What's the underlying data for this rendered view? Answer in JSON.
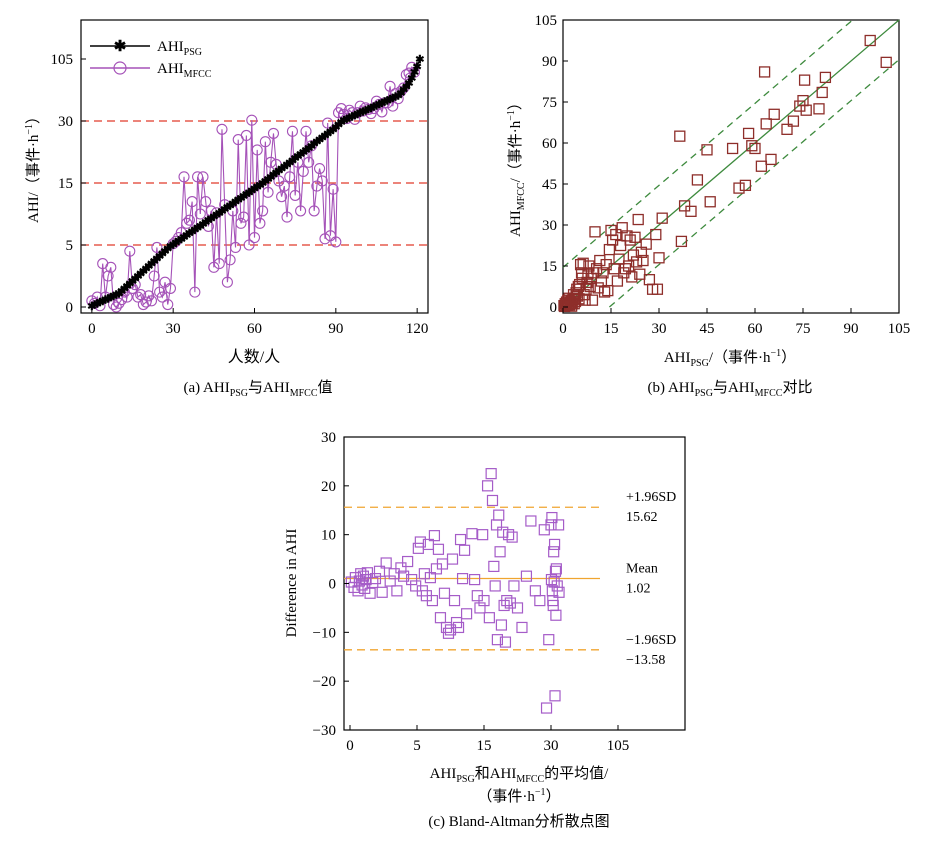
{
  "chart_data": [
    {
      "id": "a",
      "type": "line",
      "caption": "(a) AHI_PSG与AHI_MFCC值",
      "caption_parts": {
        "prefix": "(a) AHI",
        "sub1": "PSG",
        "mid": "与AHI",
        "sub2": "MFCC",
        "suffix": "值"
      },
      "xlabel": "人数/人",
      "ylabel_parts": {
        "main": "AHI/（事件·h",
        "sup": "−1",
        "end": "）"
      },
      "x_ticks": [
        "0",
        "30",
        "60",
        "90",
        "120"
      ],
      "y_ticks": [
        "0",
        "5",
        "15",
        "30",
        "105"
      ],
      "y_tick_positions": [
        0,
        5,
        15,
        30,
        105
      ],
      "xlim": [
        -4,
        124
      ],
      "legend_location": "top-left",
      "reference_lines": [
        5,
        15,
        30
      ],
      "colors": {
        "psg": "#000000",
        "mfcc": "#a552b8",
        "ref": "#e03a2a"
      },
      "series": [
        {
          "name": "AHI_PSG",
          "name_parts": {
            "main": "AHI",
            "sub": "PSG"
          },
          "marker": "star",
          "values": [
            0.1,
            0.2,
            0.3,
            0.4,
            0.5,
            0.6,
            0.7,
            0.8,
            0.9,
            1.0,
            1.1,
            1.3,
            1.5,
            1.7,
            1.9,
            2.1,
            2.3,
            2.5,
            2.7,
            2.9,
            3.1,
            3.3,
            3.5,
            3.7,
            3.9,
            4.1,
            4.3,
            4.5,
            4.7,
            4.9,
            5.1,
            5.4,
            5.7,
            6.0,
            6.3,
            6.6,
            6.9,
            7.2,
            7.5,
            7.8,
            8.1,
            8.4,
            8.7,
            9.0,
            9.3,
            9.6,
            9.9,
            10.2,
            10.5,
            10.8,
            11.1,
            11.4,
            11.7,
            12.0,
            12.3,
            12.6,
            12.9,
            13.2,
            13.5,
            13.8,
            14.1,
            14.4,
            14.7,
            15.0,
            15.5,
            16.0,
            16.5,
            17.0,
            17.5,
            18.0,
            18.5,
            19.0,
            19.5,
            20.0,
            20.5,
            21.0,
            21.5,
            22.0,
            22.5,
            23.0,
            23.5,
            24.0,
            24.5,
            25.0,
            25.5,
            26.0,
            26.5,
            27.0,
            27.5,
            28.0,
            28.6,
            29.2,
            29.8,
            31.0,
            32.5,
            34.0,
            35.5,
            37.0,
            38.5,
            40.0,
            41.5,
            43.0,
            44.5,
            46.0,
            47.5,
            49.0,
            50.5,
            52.0,
            53.5,
            55.0,
            56.5,
            58.0,
            59.5,
            61.0,
            64.0,
            68.0,
            72.0,
            76.0,
            82.0,
            89.0,
            96.0,
            105.0
          ]
        },
        {
          "name": "AHI_MFCC",
          "name_parts": {
            "main": "AHI",
            "sub": "MFCC"
          },
          "marker": "circle",
          "values": [
            0.5,
            0.3,
            0.8,
            0.1,
            3.5,
            0.8,
            2.5,
            3.2,
            0.2,
            0.0,
            0.3,
            0.6,
            1.2,
            0.8,
            4.5,
            1.5,
            1.8,
            0.8,
            1.0,
            0.2,
            0.4,
            0.9,
            0.5,
            2.5,
            4.8,
            1.2,
            0.8,
            2.0,
            0.2,
            1.5,
            5.2,
            5.6,
            6.2,
            7.0,
            16.5,
            8.5,
            9.0,
            12.0,
            1.2,
            16.5,
            10.0,
            16.5,
            12.0,
            8.0,
            10.5,
            3.2,
            10.2,
            3.5,
            28.0,
            11.5,
            2.0,
            3.8,
            10.5,
            4.8,
            25.5,
            8.5,
            9.5,
            26.5,
            5.0,
            31.0,
            6.2,
            23.0,
            8.5,
            10.5,
            25.0,
            13.5,
            20.0,
            27.0,
            19.5,
            15.5,
            12.8,
            14.5,
            9.5,
            16.5,
            27.5,
            13.0,
            20.0,
            10.5,
            17.8,
            27.5,
            20.0,
            24.0,
            10.5,
            14.5,
            18.5,
            15.5,
            6.0,
            29.5,
            6.5,
            14.0,
            5.5,
            40.0,
            45.0,
            38.0,
            33.0,
            43.0,
            40.0,
            32.0,
            40.0,
            48.0,
            42.0,
            46.0,
            44.0,
            39.0,
            45.0,
            54.0,
            50.0,
            41.0,
            52.0,
            52.0,
            72.0,
            48.0,
            63.0,
            57.0,
            66.0,
            70.0,
            86.0,
            88.0,
            95.0,
            89.0
          ]
        }
      ]
    },
    {
      "id": "b",
      "type": "scatter",
      "caption": "(b) AHI_PSG与AHI_MFCC对比",
      "caption_parts": {
        "prefix": "(b) AHI",
        "sub1": "PSG",
        "mid": "与AHI",
        "sub2": "MFCC",
        "suffix": "对比"
      },
      "xlabel_parts": {
        "main": "AHI",
        "sub": "PSG",
        "rest": "/（事件·h",
        "sup": "−1",
        "end": "）"
      },
      "ylabel_parts": {
        "main": "AHI",
        "sub": "MFCC",
        "rest": "/（事件·h",
        "sup": "−1",
        "end": "）"
      },
      "x_ticks": [
        "0",
        "15",
        "30",
        "45",
        "60",
        "75",
        "90",
        "105"
      ],
      "y_ticks": [
        "0",
        "15",
        "30",
        "45",
        "60",
        "75",
        "90",
        "105"
      ],
      "xlim": [
        0,
        105
      ],
      "ylim": [
        0,
        105
      ],
      "fit_line": {
        "slope": 1.0,
        "intercept": 0,
        "band": 14.5
      },
      "colors": {
        "marker": "#8e2e2a",
        "fit": "#3d8a3d"
      },
      "points": [
        [
          0.3,
          0.5
        ],
        [
          0.5,
          0.2
        ],
        [
          0.7,
          1.2
        ],
        [
          0.9,
          0.4
        ],
        [
          1.1,
          1.8
        ],
        [
          1.3,
          0.6
        ],
        [
          1.5,
          2.5
        ],
        [
          1.7,
          1.0
        ],
        [
          1.9,
          3.2
        ],
        [
          2.1,
          0.8
        ],
        [
          2.3,
          1.5
        ],
        [
          2.5,
          2.2
        ],
        [
          2.7,
          0.3
        ],
        [
          2.9,
          1.2
        ],
        [
          3.1,
          2.8
        ],
        [
          3.3,
          4.5
        ],
        [
          3.5,
          1.2
        ],
        [
          3.7,
          3.2
        ],
        [
          3.9,
          2.0
        ],
        [
          4.1,
          5.2
        ],
        [
          4.3,
          6.5
        ],
        [
          4.5,
          4.0
        ],
        [
          4.8,
          7.5
        ],
        [
          5.0,
          3.0
        ],
        [
          5.2,
          8.2
        ],
        [
          5.5,
          15.5
        ],
        [
          5.8,
          12.5
        ],
        [
          6.0,
          10.5
        ],
        [
          6.3,
          16.0
        ],
        [
          6.6,
          4.5
        ],
        [
          6.9,
          2.5
        ],
        [
          7.2,
          6.5
        ],
        [
          7.5,
          9.0
        ],
        [
          7.8,
          12.0
        ],
        [
          8.1,
          15.0
        ],
        [
          8.5,
          7.5
        ],
        [
          8.8,
          10.5
        ],
        [
          9.2,
          2.5
        ],
        [
          9.6,
          12.5
        ],
        [
          10.0,
          27.5
        ],
        [
          10.5,
          14.0
        ],
        [
          11.0,
          7.0
        ],
        [
          11.5,
          17.0
        ],
        [
          12.0,
          9.5
        ],
        [
          12.5,
          12.5
        ],
        [
          13.0,
          5.5
        ],
        [
          13.5,
          15.5
        ],
        [
          14.0,
          6.0
        ],
        [
          14.5,
          21.0
        ],
        [
          15.0,
          28.0
        ],
        [
          15.5,
          24.5
        ],
        [
          16.0,
          14.0
        ],
        [
          16.5,
          26.5
        ],
        [
          17.0,
          9.5
        ],
        [
          17.5,
          17.5
        ],
        [
          18.0,
          22.5
        ],
        [
          18.5,
          29.0
        ],
        [
          19.0,
          12.5
        ],
        [
          19.5,
          14.0
        ],
        [
          20.0,
          26.0
        ],
        [
          20.5,
          15.0
        ],
        [
          21.0,
          24.5
        ],
        [
          21.5,
          11.0
        ],
        [
          22.0,
          19.0
        ],
        [
          22.5,
          25.5
        ],
        [
          23.0,
          16.5
        ],
        [
          23.5,
          32.0
        ],
        [
          24.0,
          12.0
        ],
        [
          24.5,
          20.0
        ],
        [
          25.0,
          17.0
        ],
        [
          26.0,
          23.0
        ],
        [
          27.0,
          10.0
        ],
        [
          28.0,
          6.5
        ],
        [
          29.0,
          26.5
        ],
        [
          29.5,
          6.5
        ],
        [
          30.0,
          18.0
        ],
        [
          31.0,
          32.5
        ],
        [
          36.5,
          62.5
        ],
        [
          37.0,
          24.0
        ],
        [
          38.0,
          37.0
        ],
        [
          40.0,
          35.0
        ],
        [
          42.0,
          46.5
        ],
        [
          45.0,
          57.5
        ],
        [
          46.0,
          38.5
        ],
        [
          53.0,
          58.0
        ],
        [
          55.0,
          43.5
        ],
        [
          57.0,
          44.5
        ],
        [
          58.0,
          63.5
        ],
        [
          59.0,
          59.0
        ],
        [
          60.0,
          58.0
        ],
        [
          62.0,
          51.5
        ],
        [
          63.0,
          86.0
        ],
        [
          63.5,
          67.0
        ],
        [
          65.0,
          54.0
        ],
        [
          66.0,
          70.5
        ],
        [
          70.0,
          65.0
        ],
        [
          72.0,
          68.0
        ],
        [
          74.0,
          73.5
        ],
        [
          75.0,
          75.5
        ],
        [
          75.5,
          83.0
        ],
        [
          76.0,
          72.0
        ],
        [
          80.0,
          72.5
        ],
        [
          81.0,
          78.5
        ],
        [
          82.0,
          84.0
        ],
        [
          96.0,
          97.5
        ],
        [
          101.0,
          89.5
        ]
      ]
    },
    {
      "id": "c",
      "type": "scatter",
      "caption": "(c) Bland-Altman分析散点图",
      "xlabel_line1_parts": {
        "main": "AHI",
        "sub1": "PSG",
        "mid": "和AHI",
        "sub2": "MFCC",
        "end": "的平均值/"
      },
      "xlabel_line2_parts": {
        "main": "（事件·h",
        "sup": "−1",
        "end": "）"
      },
      "ylabel": "Difference in AHI",
      "x_ticks": [
        "0",
        "5",
        "15",
        "30",
        "105"
      ],
      "y_ticks": [
        "30",
        "20",
        "10",
        "0",
        "−10",
        "−20",
        "−30"
      ],
      "ylim": [
        -30,
        30
      ],
      "reference_lines": [
        {
          "value": 15.62,
          "label": "+1.96SD",
          "value_label": "15.62"
        },
        {
          "value": 1.02,
          "label": "Mean",
          "value_label": "1.02"
        },
        {
          "value": -13.58,
          "label": "−1.96SD",
          "value_label": "−13.58"
        }
      ],
      "colors": {
        "marker": "#a55cc8",
        "ref": "#f0a530"
      },
      "points": [
        [
          0.1,
          0.3
        ],
        [
          0.3,
          -0.8
        ],
        [
          0.4,
          1.2
        ],
        [
          0.6,
          -1.5
        ],
        [
          0.7,
          0.5
        ],
        [
          0.8,
          2.0
        ],
        [
          0.9,
          -0.3
        ],
        [
          1.0,
          1.5
        ],
        [
          1.1,
          -1.0
        ],
        [
          1.2,
          0.8
        ],
        [
          1.3,
          2.2
        ],
        [
          1.5,
          -2.0
        ],
        [
          1.7,
          0.2
        ],
        [
          1.9,
          1.0
        ],
        [
          2.2,
          2.5
        ],
        [
          2.4,
          -1.8
        ],
        [
          2.7,
          4.2
        ],
        [
          3.0,
          0.5
        ],
        [
          3.3,
          2.0
        ],
        [
          3.5,
          -1.5
        ],
        [
          3.8,
          3.2
        ],
        [
          4.0,
          1.5
        ],
        [
          4.3,
          4.5
        ],
        [
          4.6,
          0.8
        ],
        [
          4.9,
          -0.5
        ],
        [
          5.2,
          7.2
        ],
        [
          5.5,
          8.5
        ],
        [
          5.8,
          -1.5
        ],
        [
          6.1,
          2.0
        ],
        [
          6.4,
          -2.5
        ],
        [
          6.7,
          8.0
        ],
        [
          7.0,
          1.2
        ],
        [
          7.3,
          -3.5
        ],
        [
          7.6,
          9.8
        ],
        [
          7.9,
          3.0
        ],
        [
          8.2,
          7.0
        ],
        [
          8.5,
          -7.0
        ],
        [
          8.8,
          4.0
        ],
        [
          9.1,
          -2.0
        ],
        [
          9.4,
          -9.0
        ],
        [
          9.7,
          -10.2
        ],
        [
          10.0,
          -9.5
        ],
        [
          10.3,
          5.0
        ],
        [
          10.6,
          -3.5
        ],
        [
          10.9,
          -8.0
        ],
        [
          11.2,
          -9.0
        ],
        [
          11.5,
          9.0
        ],
        [
          11.8,
          1.0
        ],
        [
          12.1,
          6.8
        ],
        [
          12.4,
          -6.2
        ],
        [
          13.2,
          10.2
        ],
        [
          13.6,
          0.8
        ],
        [
          14.0,
          -2.5
        ],
        [
          14.4,
          -5.0
        ],
        [
          14.8,
          10.0
        ],
        [
          15.0,
          -3.5
        ],
        [
          15.8,
          20.0
        ],
        [
          16.2,
          -7.0
        ],
        [
          16.6,
          22.5
        ],
        [
          16.9,
          17.0
        ],
        [
          17.2,
          3.5
        ],
        [
          17.5,
          -0.5
        ],
        [
          17.8,
          12.0
        ],
        [
          18.0,
          -11.5
        ],
        [
          18.3,
          14.0
        ],
        [
          18.6,
          6.5
        ],
        [
          18.9,
          -8.5
        ],
        [
          19.2,
          10.5
        ],
        [
          19.5,
          -4.5
        ],
        [
          19.8,
          -12.0
        ],
        [
          20.1,
          -3.5
        ],
        [
          20.5,
          10.0
        ],
        [
          20.9,
          -4.0
        ],
        [
          21.3,
          9.5
        ],
        [
          21.7,
          -0.5
        ],
        [
          22.5,
          -5.0
        ],
        [
          23.5,
          -9.0
        ],
        [
          24.5,
          1.5
        ],
        [
          25.5,
          12.8
        ],
        [
          26.5,
          -1.5
        ],
        [
          27.5,
          -3.5
        ],
        [
          28.5,
          11.0
        ],
        [
          29.0,
          -25.5
        ],
        [
          29.5,
          -11.5
        ],
        [
          30.0,
          12.0
        ],
        [
          30.5,
          0.8
        ],
        [
          31.0,
          13.5
        ],
        [
          31.5,
          -1.5
        ],
        [
          32.0,
          -3.5
        ],
        [
          32.5,
          -4.5
        ],
        [
          33.0,
          6.5
        ],
        [
          33.5,
          0.3
        ],
        [
          34.0,
          8.0
        ],
        [
          34.5,
          -23.0
        ],
        [
          35.0,
          2.5
        ],
        [
          35.5,
          -6.5
        ],
        [
          36.0,
          3.0
        ],
        [
          37.0,
          -0.5
        ],
        [
          38.5,
          12.0
        ],
        [
          39.0,
          -1.8
        ]
      ]
    }
  ]
}
